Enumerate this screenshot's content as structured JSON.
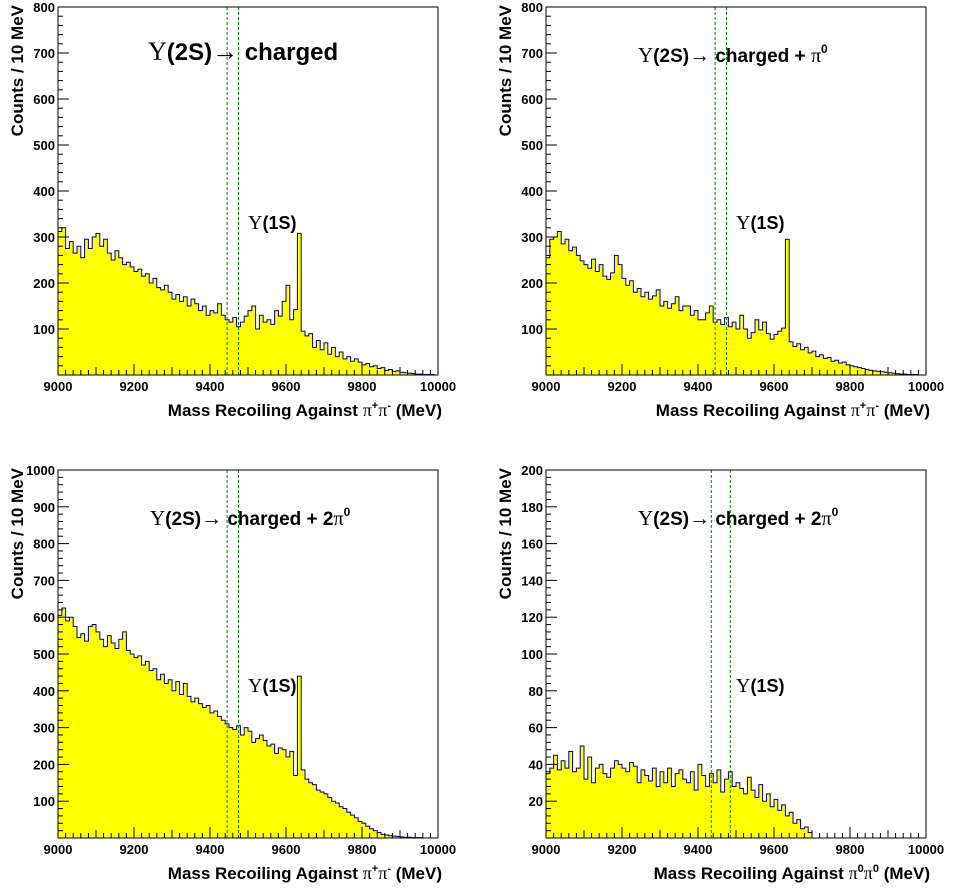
{
  "chart_data": [
    {
      "type": "histogram",
      "annotation": {
        "lead": "Υ",
        "state": "(2S)",
        "arrow": "→",
        "mode": " charged",
        "sup": ""
      },
      "peak_label": {
        "greek": "Υ",
        "text": "(1S)"
      },
      "xlabel": {
        "prefix": "Mass Recoiling Against ",
        "greek1": "π",
        "sup1": "+",
        "greek2": "π",
        "sup2": "-",
        "suffix": " (MeV)"
      },
      "ylabel": "Counts / 10 MeV",
      "xlim": [
        9000,
        10000
      ],
      "ylim": [
        0,
        800
      ],
      "xticks": [
        "9000",
        "9200",
        "9400",
        "9600",
        "9800",
        "10000"
      ],
      "yticks": [
        "100",
        "200",
        "300",
        "400",
        "500",
        "600",
        "700",
        "800"
      ],
      "yticks_values": [
        100,
        200,
        300,
        400,
        500,
        600,
        700,
        800
      ],
      "signal_window": [
        9445,
        9475
      ],
      "fill_color": "#ffff00",
      "line_color": "#000080",
      "window_color": "#008000",
      "bin_width": 10,
      "counts": [
        312,
        320,
        275,
        290,
        265,
        280,
        255,
        295,
        275,
        300,
        308,
        280,
        295,
        265,
        250,
        270,
        255,
        240,
        245,
        235,
        225,
        230,
        215,
        220,
        200,
        210,
        190,
        185,
        195,
        180,
        165,
        175,
        160,
        170,
        150,
        165,
        155,
        140,
        150,
        130,
        140,
        135,
        155,
        130,
        120,
        115,
        125,
        105,
        115,
        128,
        140,
        150,
        100,
        130,
        115,
        120,
        110,
        140,
        128,
        160,
        195,
        120,
        142,
        308,
        95,
        85,
        90,
        60,
        75,
        55,
        70,
        45,
        60,
        40,
        50,
        35,
        40,
        30,
        35,
        28,
        22,
        25,
        18,
        20,
        14,
        16,
        10,
        12,
        8,
        9,
        6,
        5,
        4,
        3,
        2,
        2,
        1,
        1,
        1,
        0,
        0
      ]
    },
    {
      "type": "histogram",
      "annotation": {
        "lead": "Υ",
        "state": "(2S)",
        "arrow": "→",
        "mode": " charged + ",
        "sup": "0"
      },
      "peak_label": {
        "greek": "Υ",
        "text": "(1S)"
      },
      "xlabel": {
        "prefix": "Mass Recoiling Against ",
        "greek1": "π",
        "sup1": "+",
        "greek2": "π",
        "sup2": "-",
        "suffix": " (MeV)"
      },
      "ylabel": "Counts / 10 MeV",
      "xlim": [
        9000,
        10000
      ],
      "ylim": [
        0,
        800
      ],
      "xticks": [
        "9000",
        "9200",
        "9400",
        "9600",
        "9800",
        "10000"
      ],
      "yticks": [
        "100",
        "200",
        "300",
        "400",
        "500",
        "600",
        "700",
        "800"
      ],
      "yticks_values": [
        100,
        200,
        300,
        400,
        500,
        600,
        700,
        800
      ],
      "signal_window": [
        9445,
        9475
      ],
      "fill_color": "#ffff00",
      "line_color": "#000080",
      "window_color": "#008000",
      "bin_width": 10,
      "counts": [
        255,
        295,
        300,
        312,
        285,
        295,
        270,
        278,
        260,
        248,
        240,
        232,
        252,
        225,
        240,
        215,
        208,
        222,
        260,
        240,
        210,
        195,
        205,
        180,
        188,
        170,
        180,
        165,
        172,
        185,
        150,
        160,
        145,
        155,
        170,
        140,
        150,
        150,
        130,
        140,
        120,
        120,
        135,
        150,
        115,
        120,
        110,
        125,
        105,
        115,
        100,
        130,
        100,
        80,
        92,
        120,
        98,
        115,
        90,
        78,
        88,
        95,
        102,
        295,
        72,
        62,
        68,
        55,
        60,
        48,
        52,
        40,
        44,
        36,
        38,
        30,
        32,
        26,
        28,
        22,
        20,
        18,
        16,
        14,
        12,
        10,
        9,
        8,
        7,
        6,
        5,
        4,
        3,
        2,
        2,
        1,
        1,
        1,
        0,
        0,
        0
      ]
    },
    {
      "type": "histogram",
      "annotation": {
        "lead": "Υ",
        "state": "(2S)",
        "arrow": "→",
        "mode": " charged + 2",
        "sup": "0"
      },
      "peak_label": {
        "greek": "Υ",
        "text": "(1S)"
      },
      "xlabel": {
        "prefix": "Mass Recoiling Against ",
        "greek1": "π",
        "sup1": "+",
        "greek2": "π",
        "sup2": "-",
        "suffix": " (MeV)"
      },
      "ylabel": "Counts / 10 MeV",
      "xlim": [
        9000,
        10000
      ],
      "ylim": [
        0,
        1000
      ],
      "xticks": [
        "9000",
        "9200",
        "9400",
        "9600",
        "9800",
        "10000"
      ],
      "yticks": [
        "100",
        "200",
        "300",
        "400",
        "500",
        "600",
        "700",
        "800",
        "900",
        "1000"
      ],
      "yticks_values": [
        100,
        200,
        300,
        400,
        500,
        600,
        700,
        800,
        900,
        1000
      ],
      "signal_window": [
        9445,
        9475
      ],
      "fill_color": "#ffff00",
      "line_color": "#000080",
      "window_color": "#008000",
      "bin_width": 10,
      "counts": [
        605,
        625,
        590,
        600,
        575,
        545,
        555,
        535,
        575,
        580,
        560,
        540,
        520,
        550,
        530,
        515,
        540,
        560,
        510,
        500,
        490,
        495,
        470,
        480,
        455,
        460,
        430,
        445,
        420,
        430,
        400,
        425,
        390,
        420,
        385,
        370,
        380,
        365,
        355,
        360,
        340,
        345,
        330,
        320,
        310,
        300,
        295,
        305,
        280,
        300,
        290,
        260,
        270,
        280,
        265,
        250,
        255,
        230,
        245,
        240,
        220,
        235,
        170,
        440,
        185,
        160,
        150,
        145,
        130,
        125,
        120,
        110,
        100,
        95,
        85,
        80,
        70,
        62,
        55,
        45,
        40,
        32,
        25,
        20,
        15,
        10,
        8,
        6,
        5,
        4,
        3,
        2,
        2,
        1,
        1,
        1,
        0,
        0,
        0,
        0,
        0
      ]
    },
    {
      "type": "histogram",
      "annotation": {
        "lead": "Υ",
        "state": "(2S)",
        "arrow": "→",
        "mode": " charged + 2",
        "sup": "0"
      },
      "peak_label": {
        "greek": "Υ",
        "text": "(1S)"
      },
      "xlabel": {
        "prefix": "Mass Recoiling Against ",
        "greek1": "π",
        "sup1": "0",
        "greek2": "π",
        "sup2": "0",
        "suffix": " (MeV)"
      },
      "ylabel": "Counts / 10 MeV",
      "xlim": [
        9000,
        10000
      ],
      "ylim": [
        0,
        200
      ],
      "xticks": [
        "9000",
        "9200",
        "9400",
        "9600",
        "9800",
        "10000"
      ],
      "yticks": [
        "20",
        "40",
        "60",
        "80",
        "100",
        "120",
        "140",
        "160",
        "180",
        "200"
      ],
      "yticks_values": [
        20,
        40,
        60,
        80,
        100,
        120,
        140,
        160,
        180,
        200
      ],
      "signal_window": [
        9435,
        9485
      ],
      "fill_color": "#ffff00",
      "line_color": "#000080",
      "window_color": "#008000",
      "bin_width": 10,
      "counts": [
        35,
        38,
        45,
        37,
        42,
        38,
        47,
        36,
        38,
        50,
        32,
        44,
        30,
        38,
        40,
        35,
        33,
        38,
        42,
        40,
        38,
        36,
        41,
        39,
        30,
        37,
        34,
        31,
        38,
        28,
        36,
        30,
        38,
        28,
        35,
        37,
        32,
        30,
        36,
        26,
        40,
        34,
        28,
        35,
        30,
        37,
        25,
        32,
        36,
        28,
        30,
        27,
        24,
        33,
        26,
        22,
        29,
        20,
        24,
        17,
        21,
        15,
        18,
        12,
        14,
        8,
        10,
        5,
        6,
        3,
        0,
        0,
        0,
        0,
        0,
        0,
        0,
        0,
        0,
        0,
        0,
        0,
        0,
        0,
        0,
        0,
        0,
        0,
        0,
        0,
        0,
        0,
        0,
        0,
        0,
        0,
        0,
        0,
        0,
        0,
        0
      ]
    }
  ]
}
